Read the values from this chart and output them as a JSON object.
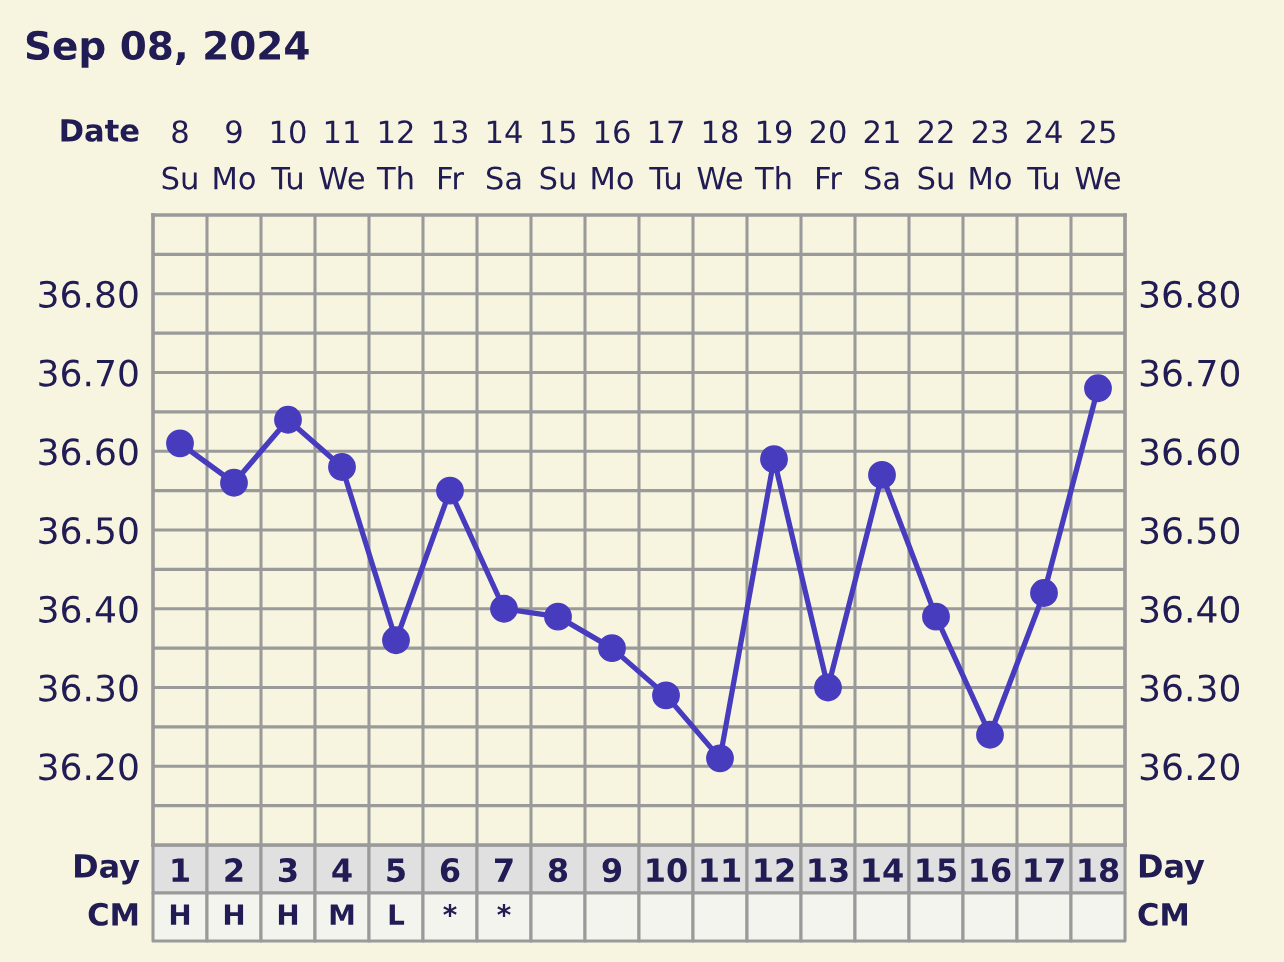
{
  "chart_data": {
    "type": "line",
    "title": "Sep 08, 2024",
    "xlabel": "Day",
    "x2label": "Date",
    "x": [
      1,
      2,
      3,
      4,
      5,
      6,
      7,
      8,
      9,
      10,
      11,
      12,
      13,
      14,
      15,
      16,
      17,
      18
    ],
    "xlim": [
      0.5,
      18.5
    ],
    "xticks": [
      1,
      2,
      3,
      4,
      5,
      6,
      7,
      8,
      9,
      10,
      11,
      12,
      13,
      14,
      15,
      16,
      17,
      18
    ],
    "x2lim": [
      "2024-09-07T12:00",
      "2024-09-25T12:00"
    ],
    "x2ticks": [
      {
        "value": "2024-09-08",
        "label": "8\nSu"
      },
      {
        "value": "2024-09-09",
        "label": "9\nMo"
      },
      {
        "value": "2024-09-10",
        "label": "10\nTu"
      },
      {
        "value": "2024-09-11",
        "label": "11\nWe"
      },
      {
        "value": "2024-09-12",
        "label": "12\nTh"
      },
      {
        "value": "2024-09-13",
        "label": "13\nFr"
      },
      {
        "value": "2024-09-14",
        "label": "14\nSa"
      },
      {
        "value": "2024-09-15",
        "label": "15\nSu"
      },
      {
        "value": "2024-09-16",
        "label": "16\nMo"
      },
      {
        "value": "2024-09-17",
        "label": "17\nTu"
      },
      {
        "value": "2024-09-18",
        "label": "18\nWe"
      },
      {
        "value": "2024-09-19",
        "label": "19\nTh"
      },
      {
        "value": "2024-09-20",
        "label": "20\nFr"
      },
      {
        "value": "2024-09-21",
        "label": "21\nSa"
      },
      {
        "value": "2024-09-22",
        "label": "22\nSu"
      },
      {
        "value": "2024-09-23",
        "label": "23\nMo"
      },
      {
        "value": "2024-09-24",
        "label": "24\nTu"
      },
      {
        "value": "2024-09-25",
        "label": "25\nWe"
      }
    ],
    "ylim": [
      36.1,
      36.9
    ],
    "yticks": [
      {
        "value": 36.15,
        "label": null
      },
      {
        "value": 36.2,
        "label": "36.20"
      },
      {
        "value": 36.25,
        "label": null
      },
      {
        "value": 36.3,
        "label": "36.30"
      },
      {
        "value": 36.35,
        "label": null
      },
      {
        "value": 36.4,
        "label": "36.40"
      },
      {
        "value": 36.45,
        "label": null
      },
      {
        "value": 36.5,
        "label": "36.50"
      },
      {
        "value": 36.55,
        "label": null
      },
      {
        "value": 36.6,
        "label": "36.60"
      },
      {
        "value": 36.65,
        "label": null
      },
      {
        "value": 36.7,
        "label": "36.70"
      },
      {
        "value": 36.75,
        "label": null
      },
      {
        "value": 36.8,
        "label": "36.80"
      },
      {
        "value": 36.85,
        "label": null
      }
    ],
    "y2lim": [
      36.1,
      36.9
    ],
    "y2ticks": [
      {
        "value": 36.15,
        "label": null
      },
      {
        "value": 36.2,
        "label": "36.20"
      },
      {
        "value": 36.25,
        "label": null
      },
      {
        "value": 36.3,
        "label": "36.30"
      },
      {
        "value": 36.35,
        "label": null
      },
      {
        "value": 36.4,
        "label": "36.40"
      },
      {
        "value": 36.45,
        "label": null
      },
      {
        "value": 36.5,
        "label": "36.50"
      },
      {
        "value": 36.55,
        "label": null
      },
      {
        "value": 36.6,
        "label": "36.60"
      },
      {
        "value": 36.65,
        "label": null
      },
      {
        "value": 36.7,
        "label": "36.70"
      },
      {
        "value": 36.75,
        "label": null
      },
      {
        "value": 36.8,
        "label": "36.80"
      },
      {
        "value": 36.85,
        "label": null
      }
    ],
    "series": [
      {
        "color": "#483cbe",
        "values": [
          36.61,
          36.56,
          36.64,
          36.58,
          36.36,
          36.55,
          36.4,
          36.39,
          36.35,
          36.29,
          36.21,
          36.59,
          36.3,
          36.57,
          36.39,
          36.24,
          36.42,
          36.68
        ]
      }
    ],
    "grid": true,
    "marker": "circle",
    "line_style": "solid",
    "annotations": [
      "CM",
      "H",
      "H",
      "H",
      "M",
      "L",
      "*",
      "*"
    ]
  }
}
